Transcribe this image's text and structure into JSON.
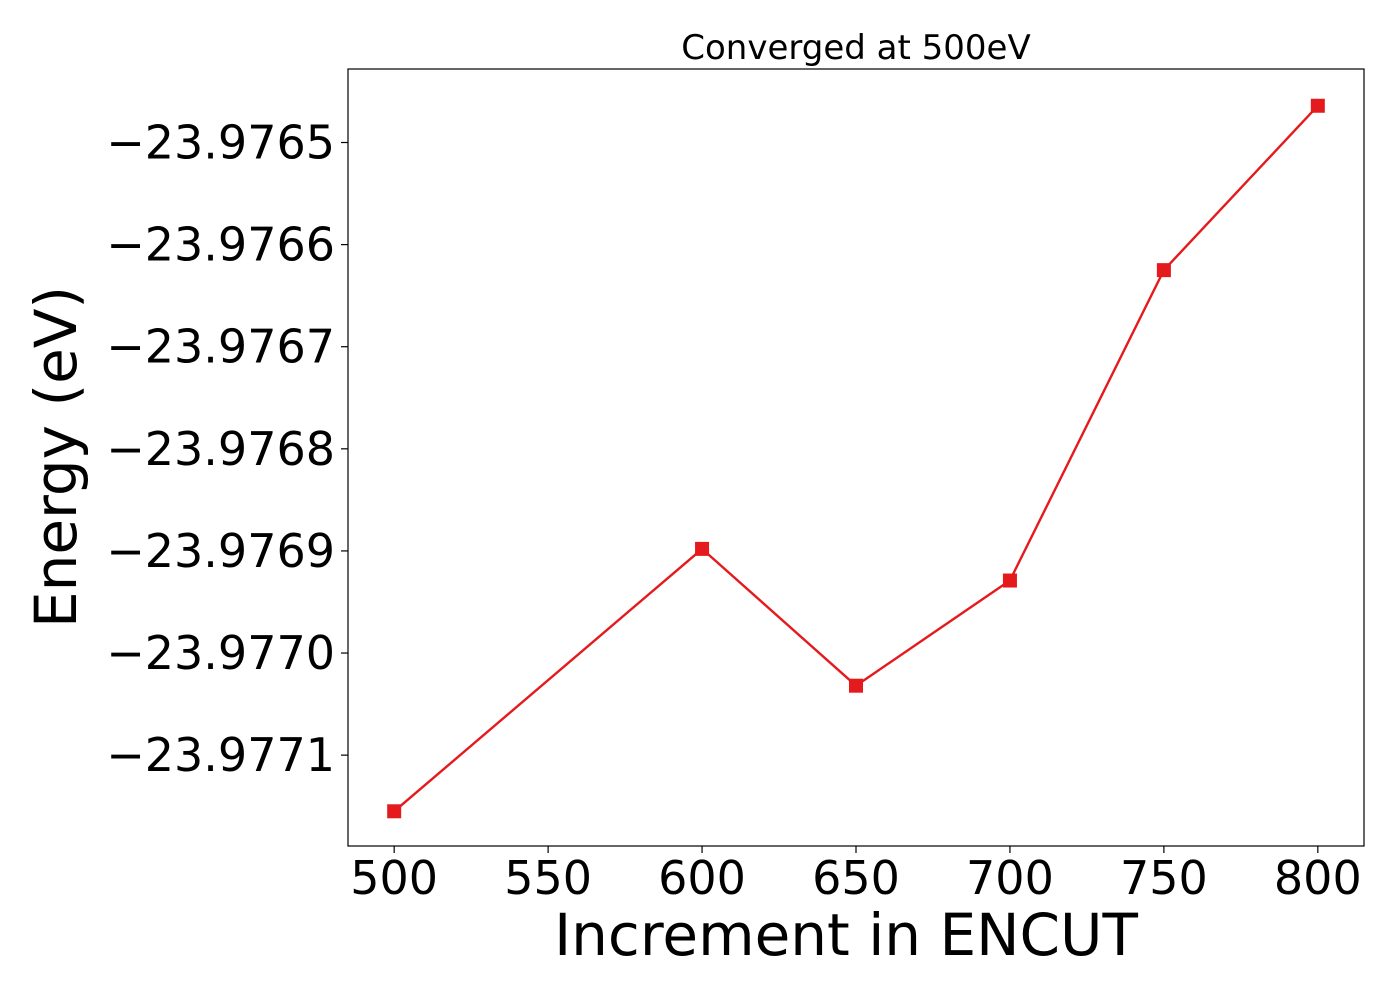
{
  "chart_data": {
    "type": "line",
    "title": "Converged at 500eV",
    "xlabel": "Increment in ENCUT",
    "ylabel": "Energy (eV)",
    "x": [
      500,
      600,
      650,
      700,
      750,
      800
    ],
    "series": [
      {
        "values": [
          -23.977155,
          -23.976898,
          -23.977032,
          -23.976929,
          -23.976625,
          -23.976464
        ],
        "color": "#e41a1c",
        "marker": "square"
      }
    ],
    "xlim": [
      485,
      815
    ],
    "ylim": [
      -23.977189,
      -23.976428
    ],
    "xticks": [
      500,
      550,
      600,
      650,
      700,
      750,
      800
    ],
    "xtick_labels": [
      "500",
      "550",
      "600",
      "650",
      "700",
      "750",
      "800"
    ],
    "yticks": [
      -23.9765,
      -23.9766,
      -23.9767,
      -23.9768,
      -23.9769,
      -23.977,
      -23.9771
    ],
    "ytick_labels": [
      "−23.9765",
      "−23.9766",
      "−23.9767",
      "−23.9768",
      "−23.9769",
      "−23.9770",
      "−23.9771"
    ],
    "grid": false,
    "legend": "none"
  }
}
